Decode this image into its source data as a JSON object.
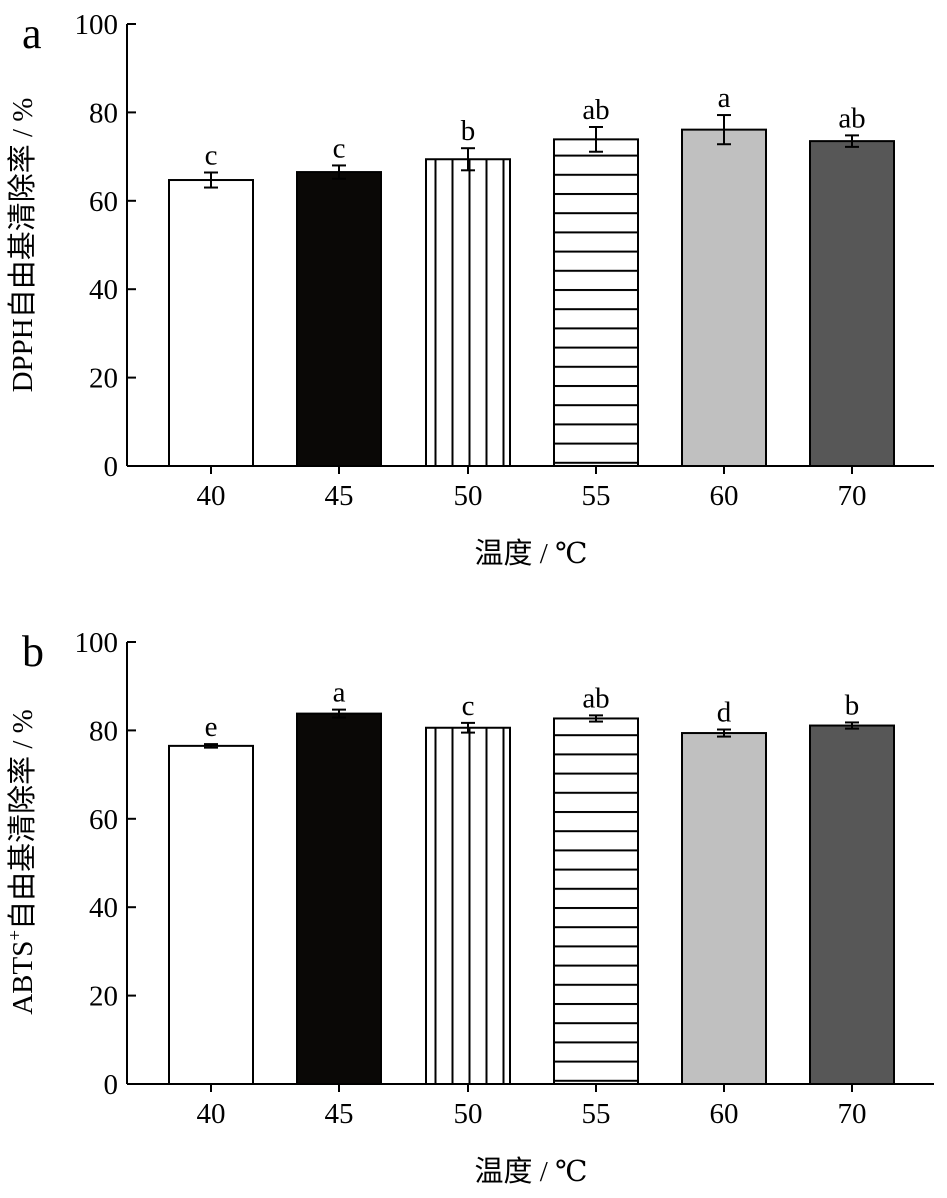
{
  "chart_data": [
    {
      "type": "bar",
      "panel_label": "a",
      "categories": [
        "40",
        "45",
        "50",
        "55",
        "60",
        "70"
      ],
      "values": [
        64.7,
        66.5,
        69.4,
        73.9,
        76.1,
        73.5
      ],
      "errors": [
        1.7,
        1.5,
        2.5,
        2.8,
        3.3,
        1.3
      ],
      "significance": [
        "c",
        "c",
        "b",
        "ab",
        "a",
        "ab"
      ],
      "patterns": [
        "white",
        "black",
        "vertical-lines",
        "horizontal-lines",
        "light-gray",
        "dark-gray"
      ],
      "xlabel": "温度 / ℃",
      "ylabel": "DPPH自由基清除率 / %",
      "ylim": [
        0,
        100
      ],
      "yticks": [
        "0",
        "20",
        "40",
        "60",
        "80",
        "100"
      ],
      "grid": false
    },
    {
      "type": "bar",
      "panel_label": "b",
      "categories": [
        "40",
        "45",
        "50",
        "55",
        "60",
        "70"
      ],
      "values": [
        76.5,
        83.8,
        80.6,
        82.7,
        79.4,
        81.1
      ],
      "errors": [
        0.4,
        0.9,
        1.1,
        0.7,
        0.8,
        0.7
      ],
      "significance": [
        "e",
        "a",
        "c",
        "ab",
        "d",
        "b"
      ],
      "patterns": [
        "white",
        "black",
        "vertical-lines",
        "horizontal-lines",
        "light-gray",
        "dark-gray"
      ],
      "xlabel": "温度 / ℃",
      "ylabel_main": "ABTS",
      "ylabel_sup": "+",
      "ylabel_rest": "自由基清除率 / %",
      "ylim": [
        0,
        100
      ],
      "yticks": [
        "0",
        "20",
        "40",
        "60",
        "80",
        "100"
      ],
      "grid": false
    }
  ],
  "colors": {
    "white": "#ffffff",
    "black": "#0a0806",
    "light_gray": "#c0c0c0",
    "dark_gray": "#575757",
    "stroke": "#000000"
  }
}
